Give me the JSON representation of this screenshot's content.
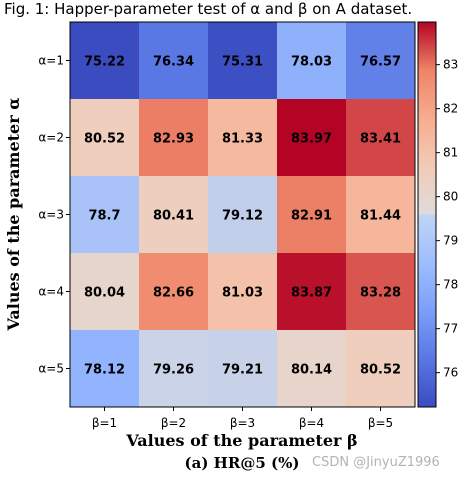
{
  "chart_data": {
    "type": "heatmap",
    "title": "Fig. 1: Happer-parameter test of α and β on A dataset.",
    "xlabel": "Values of the parameter β",
    "ylabel": "Values of the parameter α",
    "caption": "(a) HR@5 (%)",
    "x_categories": [
      "β=1",
      "β=2",
      "β=3",
      "β=4",
      "β=5"
    ],
    "y_categories": [
      "α=1",
      "α=2",
      "α=3",
      "α=4",
      "α=5"
    ],
    "values": [
      [
        75.22,
        76.34,
        75.31,
        78.03,
        76.57
      ],
      [
        80.52,
        82.93,
        81.33,
        83.97,
        83.41
      ],
      [
        78.7,
        80.41,
        79.12,
        82.91,
        81.44
      ],
      [
        80.04,
        82.66,
        81.03,
        83.87,
        83.28
      ],
      [
        78.12,
        79.26,
        79.21,
        80.14,
        80.52
      ]
    ],
    "colorbar": {
      "colormap": "coolwarm",
      "range": [
        75.22,
        83.97
      ],
      "ticks": [
        "76",
        "77",
        "78",
        "79",
        "80",
        "81",
        "82",
        "83"
      ]
    }
  },
  "watermark": "CSDN @JinyuZ1996"
}
